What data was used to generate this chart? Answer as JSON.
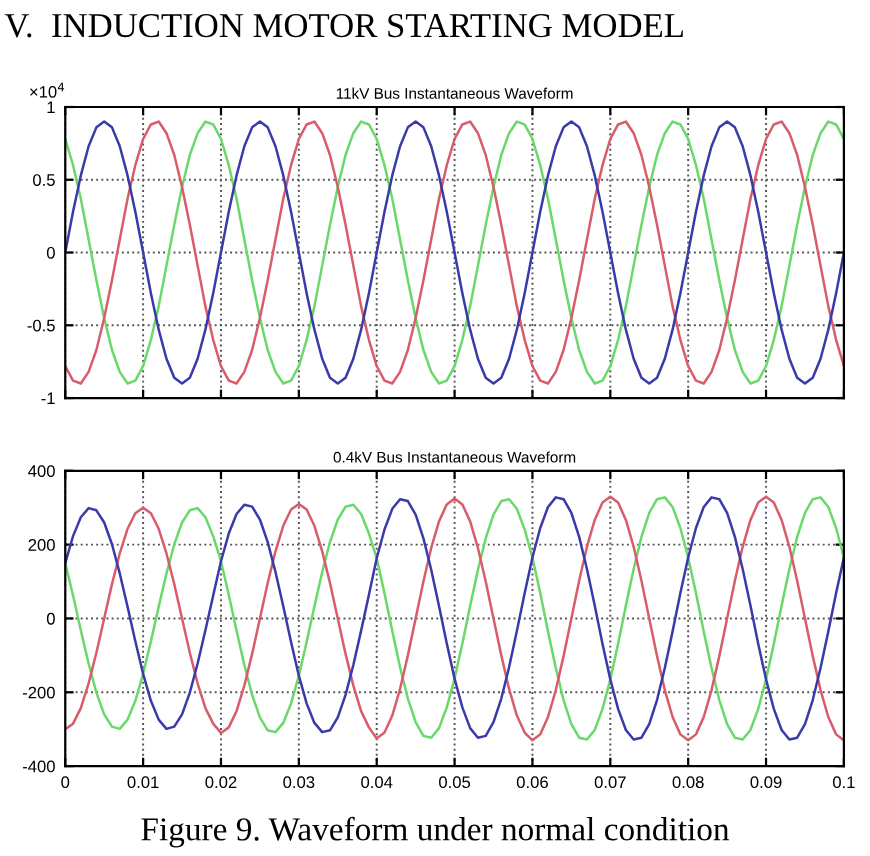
{
  "chart_data": [
    {
      "type": "line",
      "title": "11kV Bus Instantaneous Waveform",
      "annotations": [
        "V.  INDUCTION MOTOR STARTING MODEL",
        "×10$^{4}$"
      ],
      "xlim": [
        0,
        0.1
      ],
      "xticks": [
        0,
        0.01,
        0.02,
        0.03,
        0.04,
        0.05,
        0.06,
        0.07,
        0.08,
        0.09,
        0.1
      ],
      "ylim": [
        -1,
        1
      ],
      "yticks": [
        -1,
        -0.5,
        0,
        0.5,
        1
      ],
      "grid": true,
      "tick_labels": "y",
      "line_style": "solid",
      "x": [
        0,
        0.001,
        0.002,
        0.003,
        0.004,
        0.005,
        0.006,
        0.007,
        0.008,
        0.009,
        0.01,
        0.011,
        0.012,
        0.013,
        0.014,
        0.015,
        0.016,
        0.017,
        0.018,
        0.019,
        0.02,
        0.021,
        0.022,
        0.023,
        0.024,
        0.025,
        0.026,
        0.027,
        0.028,
        0.029,
        0.03,
        0.031,
        0.032,
        0.033,
        0.034,
        0.035,
        0.036,
        0.037,
        0.038,
        0.039,
        0.04,
        0.041,
        0.042,
        0.043,
        0.044,
        0.045,
        0.046,
        0.047,
        0.048,
        0.049,
        0.05,
        0.051,
        0.052,
        0.053,
        0.054,
        0.055,
        0.056,
        0.057,
        0.058,
        0.059,
        0.06,
        0.061,
        0.062,
        0.063,
        0.064,
        0.065,
        0.066,
        0.067,
        0.068,
        0.069,
        0.07,
        0.071,
        0.072,
        0.073,
        0.074,
        0.075,
        0.076,
        0.077,
        0.078,
        0.079,
        0.08,
        0.081,
        0.082,
        0.083,
        0.084,
        0.085,
        0.086,
        0.087,
        0.088,
        0.089,
        0.09,
        0.091,
        0.092,
        0.093,
        0.094,
        0.095,
        0.096,
        0.097,
        0.098,
        0.099,
        0.1
      ],
      "series": [
        {
          "color": "#6ad86a",
          "values": [
            0.78,
            0.6,
            0.37,
            0.09,
            -0.19,
            -0.45,
            -0.67,
            -0.82,
            -0.9,
            -0.88,
            -0.78,
            -0.6,
            -0.37,
            -0.09,
            0.19,
            0.45,
            0.67,
            0.82,
            0.9,
            0.88,
            0.78,
            0.6,
            0.37,
            0.09,
            -0.19,
            -0.45,
            -0.67,
            -0.82,
            -0.9,
            -0.88,
            -0.78,
            -0.6,
            -0.37,
            -0.09,
            0.19,
            0.45,
            0.67,
            0.82,
            0.9,
            0.88,
            0.78,
            0.6,
            0.37,
            0.09,
            -0.19,
            -0.45,
            -0.67,
            -0.82,
            -0.9,
            -0.88,
            -0.78,
            -0.6,
            -0.37,
            -0.09,
            0.19,
            0.45,
            0.67,
            0.82,
            0.9,
            0.88,
            0.78,
            0.6,
            0.37,
            0.09,
            -0.19,
            -0.45,
            -0.67,
            -0.82,
            -0.9,
            -0.88,
            -0.78,
            -0.6,
            -0.37,
            -0.09,
            0.19,
            0.45,
            0.67,
            0.82,
            0.9,
            0.88,
            0.78,
            0.6,
            0.37,
            0.09,
            -0.19,
            -0.45,
            -0.67,
            -0.82,
            -0.9,
            -0.88,
            -0.78,
            -0.6,
            -0.37,
            -0.09,
            0.19,
            0.45,
            0.67,
            0.82,
            0.9,
            0.88,
            0.78
          ]
        },
        {
          "color": "#d85c6a",
          "values": [
            -0.78,
            -0.88,
            -0.9,
            -0.82,
            -0.67,
            -0.45,
            -0.19,
            0.09,
            0.37,
            0.6,
            0.78,
            0.88,
            0.9,
            0.82,
            0.67,
            0.45,
            0.19,
            -0.09,
            -0.37,
            -0.6,
            -0.78,
            -0.88,
            -0.9,
            -0.82,
            -0.67,
            -0.45,
            -0.19,
            0.09,
            0.37,
            0.6,
            0.78,
            0.88,
            0.9,
            0.82,
            0.67,
            0.45,
            0.19,
            -0.09,
            -0.37,
            -0.6,
            -0.78,
            -0.88,
            -0.9,
            -0.82,
            -0.67,
            -0.45,
            -0.19,
            0.09,
            0.37,
            0.6,
            0.78,
            0.88,
            0.9,
            0.82,
            0.67,
            0.45,
            0.19,
            -0.09,
            -0.37,
            -0.6,
            -0.78,
            -0.88,
            -0.9,
            -0.82,
            -0.67,
            -0.45,
            -0.19,
            0.09,
            0.37,
            0.6,
            0.78,
            0.88,
            0.9,
            0.82,
            0.67,
            0.45,
            0.19,
            -0.09,
            -0.37,
            -0.6,
            -0.78,
            -0.88,
            -0.9,
            -0.82,
            -0.67,
            -0.45,
            -0.19,
            0.09,
            0.37,
            0.6,
            0.78,
            0.88,
            0.9,
            0.82,
            0.67,
            0.45,
            0.19,
            -0.09,
            -0.37,
            -0.6,
            -0.78
          ]
        },
        {
          "color": "#3a3aa8",
          "values": [
            0,
            0.28,
            0.53,
            0.73,
            0.86,
            0.9,
            0.86,
            0.73,
            0.53,
            0.28,
            0,
            -0.28,
            -0.53,
            -0.73,
            -0.86,
            -0.9,
            -0.86,
            -0.73,
            -0.53,
            -0.28,
            0,
            0.28,
            0.53,
            0.73,
            0.86,
            0.9,
            0.86,
            0.73,
            0.53,
            0.28,
            0,
            -0.28,
            -0.53,
            -0.73,
            -0.86,
            -0.9,
            -0.86,
            -0.73,
            -0.53,
            -0.28,
            0,
            0.28,
            0.53,
            0.73,
            0.86,
            0.9,
            0.86,
            0.73,
            0.53,
            0.28,
            0,
            -0.28,
            -0.53,
            -0.73,
            -0.86,
            -0.9,
            -0.86,
            -0.73,
            -0.53,
            -0.28,
            0,
            0.28,
            0.53,
            0.73,
            0.86,
            0.9,
            0.86,
            0.73,
            0.53,
            0.28,
            0,
            -0.28,
            -0.53,
            -0.73,
            -0.86,
            -0.9,
            -0.86,
            -0.73,
            -0.53,
            -0.28,
            0,
            0.28,
            0.53,
            0.73,
            0.86,
            0.9,
            0.86,
            0.73,
            0.53,
            0.28,
            0,
            -0.28,
            -0.53,
            -0.73,
            -0.86,
            -0.9,
            -0.86,
            -0.73,
            -0.53,
            -0.28,
            0
          ]
        }
      ]
    },
    {
      "type": "line",
      "title": "0.4kV Bus Instantaneous Waveform",
      "annotations": [
        "Figure 9. Waveform under normal condition"
      ],
      "xlim": [
        0,
        0.1
      ],
      "xticks": [
        0,
        0.01,
        0.02,
        0.03,
        0.04,
        0.05,
        0.06,
        0.07,
        0.08,
        0.09,
        0.1
      ],
      "ylim": [
        -400,
        400
      ],
      "yticks": [
        -400,
        -200,
        0,
        200,
        400
      ],
      "grid": true,
      "line_style": "solid",
      "x": [
        0,
        0.001,
        0.002,
        0.003,
        0.004,
        0.005,
        0.006,
        0.007,
        0.008,
        0.009,
        0.01,
        0.011,
        0.012,
        0.013,
        0.014,
        0.015,
        0.016,
        0.017,
        0.018,
        0.019,
        0.02,
        0.021,
        0.022,
        0.023,
        0.024,
        0.025,
        0.026,
        0.027,
        0.028,
        0.029,
        0.03,
        0.031,
        0.032,
        0.033,
        0.034,
        0.035,
        0.036,
        0.037,
        0.038,
        0.039,
        0.04,
        0.041,
        0.042,
        0.043,
        0.044,
        0.045,
        0.046,
        0.047,
        0.048,
        0.049,
        0.05,
        0.051,
        0.052,
        0.053,
        0.054,
        0.055,
        0.056,
        0.057,
        0.058,
        0.059,
        0.06,
        0.061,
        0.062,
        0.063,
        0.064,
        0.065,
        0.066,
        0.067,
        0.068,
        0.069,
        0.07,
        0.071,
        0.072,
        0.073,
        0.074,
        0.075,
        0.076,
        0.077,
        0.078,
        0.079,
        0.08,
        0.081,
        0.082,
        0.083,
        0.084,
        0.085,
        0.086,
        0.087,
        0.088,
        0.089,
        0.09,
        0.091,
        0.092,
        0.093,
        0.094,
        0.095,
        0.096,
        0.097,
        0.098,
        0.099,
        0.1
      ],
      "series": [
        {
          "color": "#6ad86a",
          "values": [
            150,
            62,
            -32,
            -122,
            -201,
            -260,
            -293,
            -299,
            -274,
            -223,
            -150,
            -62,
            32,
            122,
            201,
            260,
            293,
            299,
            274,
            223,
            155,
            64,
            -33,
            -126,
            -207,
            -268,
            -303,
            -308,
            -283,
            -230,
            -155,
            -64,
            33,
            126,
            207,
            268,
            303,
            308,
            283,
            230,
            163,
            68,
            -34,
            -132,
            -217,
            -281,
            -318,
            -323,
            -297,
            -241,
            -163,
            -68,
            34,
            132,
            217,
            281,
            318,
            323,
            297,
            241,
            165,
            69,
            -35,
            -134,
            -221,
            -286,
            -323,
            -328,
            -302,
            -245,
            -165,
            -69,
            35,
            134,
            221,
            286,
            323,
            328,
            302,
            245,
            165,
            69,
            -35,
            -134,
            -221,
            -286,
            -323,
            -328,
            -302,
            -245,
            -165,
            -69,
            35,
            134,
            221,
            286,
            323,
            328,
            302,
            245,
            165
          ]
        },
        {
          "color": "#d85c6a",
          "values": [
            -300,
            -285,
            -243,
            -176,
            -93,
            0,
            93,
            176,
            243,
            285,
            300,
            285,
            243,
            176,
            93,
            0,
            -93,
            -176,
            -243,
            -285,
            -310,
            -295,
            -251,
            -182,
            -96,
            0,
            96,
            182,
            251,
            295,
            310,
            295,
            251,
            182,
            96,
            0,
            -96,
            -182,
            -251,
            -295,
            -325,
            -309,
            -263,
            -191,
            -100,
            0,
            100,
            191,
            263,
            309,
            325,
            309,
            263,
            191,
            100,
            0,
            -100,
            -191,
            -263,
            -309,
            -330,
            -314,
            -267,
            -194,
            -102,
            0,
            102,
            194,
            267,
            314,
            330,
            314,
            267,
            194,
            102,
            0,
            -102,
            -194,
            -267,
            -314,
            -330,
            -314,
            -267,
            -194,
            -102,
            0,
            102,
            194,
            267,
            314,
            330,
            314,
            267,
            194,
            102,
            0,
            -102,
            -194,
            -267,
            -314,
            -330
          ]
        },
        {
          "color": "#3a3aa8",
          "values": [
            150,
            223,
            274,
            299,
            293,
            260,
            201,
            122,
            32,
            -62,
            -150,
            -223,
            -274,
            -299,
            -293,
            -260,
            -201,
            -122,
            -32,
            62,
            155,
            230,
            283,
            308,
            303,
            268,
            207,
            126,
            33,
            -64,
            -155,
            -230,
            -283,
            -308,
            -303,
            -268,
            -207,
            -126,
            -33,
            64,
            163,
            241,
            297,
            323,
            318,
            281,
            217,
            132,
            34,
            -68,
            -163,
            -241,
            -297,
            -323,
            -318,
            -281,
            -217,
            -132,
            -34,
            68,
            165,
            245,
            302,
            328,
            323,
            286,
            221,
            134,
            35,
            -69,
            -165,
            -245,
            -302,
            -328,
            -323,
            -286,
            -221,
            -134,
            -35,
            69,
            165,
            245,
            302,
            328,
            323,
            286,
            221,
            134,
            35,
            -69,
            -165,
            -245,
            -302,
            -328,
            -323,
            -286,
            -221,
            -134,
            -35,
            69,
            165
          ]
        }
      ]
    }
  ]
}
